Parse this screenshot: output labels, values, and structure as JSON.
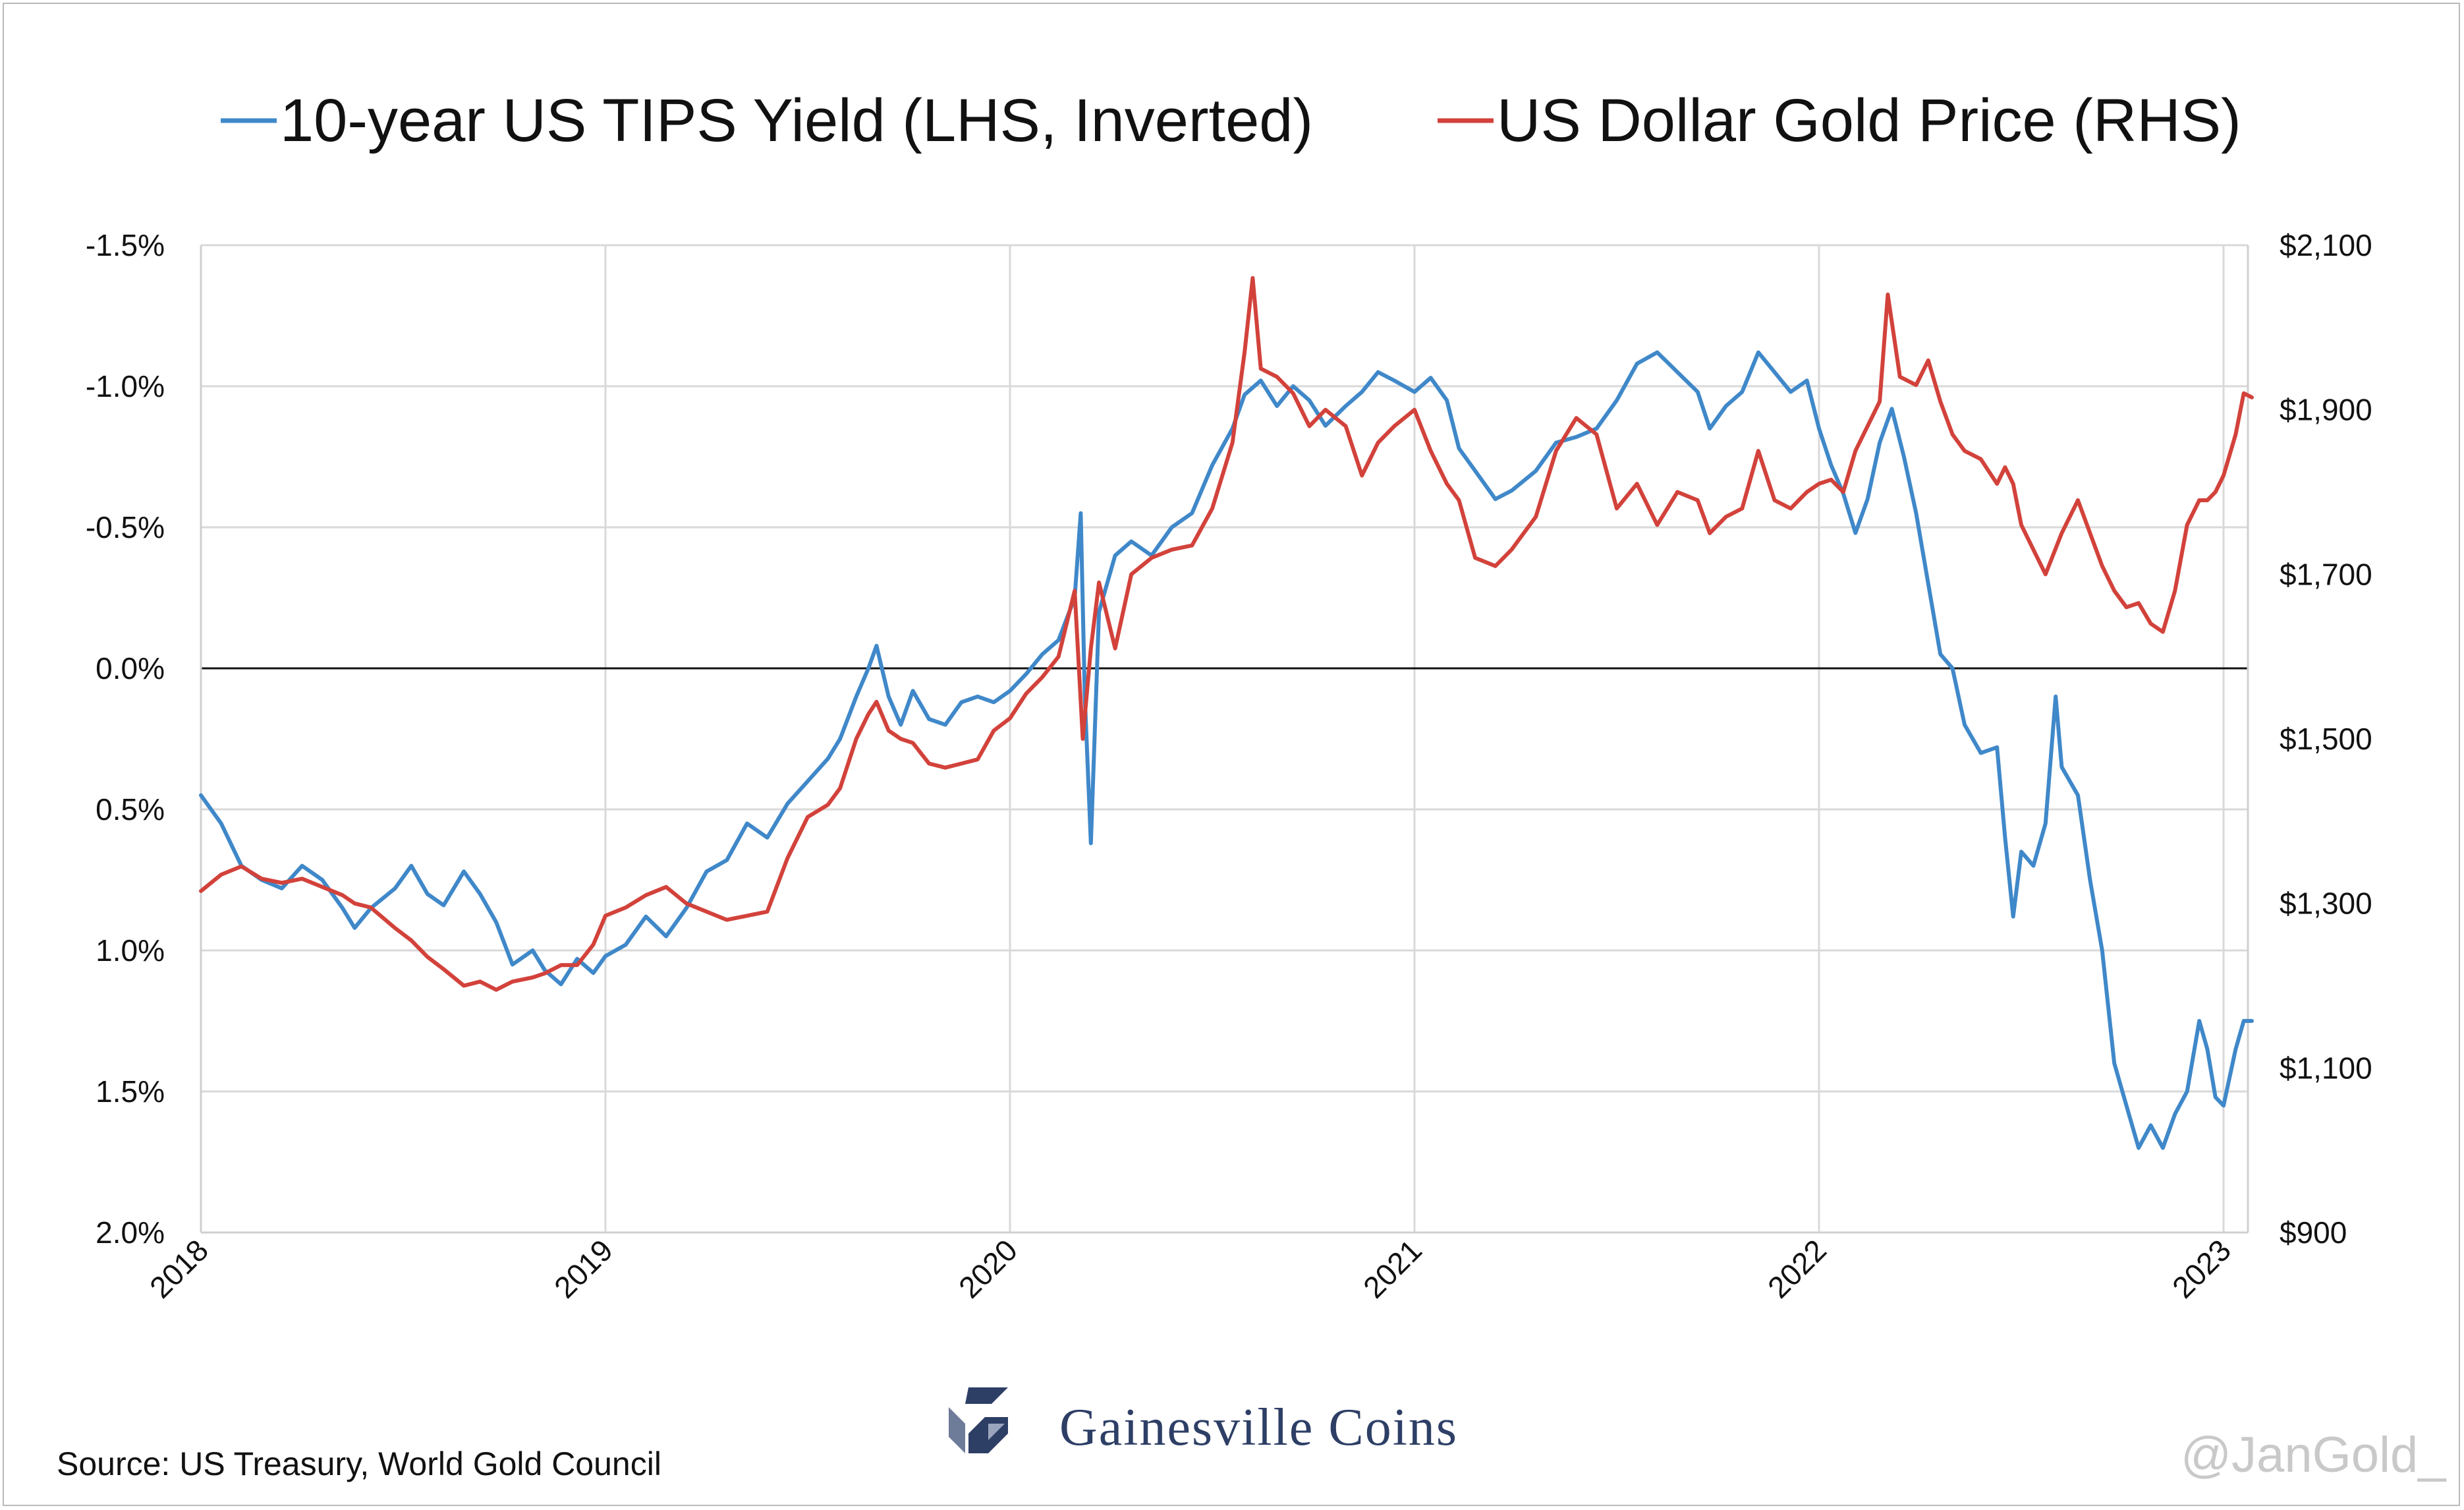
{
  "chart_data": {
    "type": "line",
    "legend": {
      "placement": "top",
      "items": [
        {
          "label": "10-year US TIPS Yield (LHS, Inverted)",
          "color": "#3f88c9"
        },
        {
          "label": "US Dollar Gold Price (RHS)",
          "color": "#d2423b"
        }
      ]
    },
    "x_axis": {
      "ticks": [
        "2018",
        "2019",
        "2020",
        "2021",
        "2022",
        "2023"
      ],
      "range": [
        2018.0,
        2023.07
      ]
    },
    "left_axis": {
      "inverted": true,
      "range": [
        -1.5,
        2.0
      ],
      "ticks": [
        {
          "v": -1.5,
          "label": "-1.5%"
        },
        {
          "v": -1.0,
          "label": "-1.0%"
        },
        {
          "v": -0.5,
          "label": "-0.5%"
        },
        {
          "v": 0.0,
          "label": "0.0%"
        },
        {
          "v": 0.5,
          "label": "0.5%"
        },
        {
          "v": 1.0,
          "label": "1.0%"
        },
        {
          "v": 1.5,
          "label": "1.5%"
        },
        {
          "v": 2.0,
          "label": "2.0%"
        }
      ]
    },
    "right_axis": {
      "range": [
        900,
        2100
      ],
      "ticks": [
        {
          "v": 2100,
          "label": "$2,100"
        },
        {
          "v": 1900,
          "label": "$1,900"
        },
        {
          "v": 1700,
          "label": "$1,700"
        },
        {
          "v": 1500,
          "label": "$1,500"
        },
        {
          "v": 1300,
          "label": "$1,300"
        },
        {
          "v": 1100,
          "label": "$1,100"
        },
        {
          "v": 900,
          "label": "$900"
        }
      ]
    },
    "grid": true,
    "zero_line": 0.0,
    "series": [
      {
        "name": "10-year US TIPS Yield (LHS, Inverted)",
        "axis": "left",
        "color": "#3f88c9",
        "points": [
          [
            2018.0,
            0.45
          ],
          [
            2018.05,
            0.55
          ],
          [
            2018.1,
            0.7
          ],
          [
            2018.15,
            0.75
          ],
          [
            2018.2,
            0.78
          ],
          [
            2018.25,
            0.7
          ],
          [
            2018.3,
            0.75
          ],
          [
            2018.35,
            0.85
          ],
          [
            2018.38,
            0.92
          ],
          [
            2018.42,
            0.85
          ],
          [
            2018.48,
            0.78
          ],
          [
            2018.52,
            0.7
          ],
          [
            2018.56,
            0.8
          ],
          [
            2018.6,
            0.84
          ],
          [
            2018.65,
            0.72
          ],
          [
            2018.69,
            0.8
          ],
          [
            2018.73,
            0.9
          ],
          [
            2018.77,
            1.05
          ],
          [
            2018.82,
            1.0
          ],
          [
            2018.85,
            1.07
          ],
          [
            2018.89,
            1.12
          ],
          [
            2018.93,
            1.03
          ],
          [
            2018.97,
            1.08
          ],
          [
            2019.0,
            1.02
          ],
          [
            2019.05,
            0.98
          ],
          [
            2019.1,
            0.88
          ],
          [
            2019.15,
            0.95
          ],
          [
            2019.2,
            0.85
          ],
          [
            2019.25,
            0.72
          ],
          [
            2019.3,
            0.68
          ],
          [
            2019.35,
            0.55
          ],
          [
            2019.4,
            0.6
          ],
          [
            2019.45,
            0.48
          ],
          [
            2019.5,
            0.4
          ],
          [
            2019.55,
            0.32
          ],
          [
            2019.58,
            0.25
          ],
          [
            2019.62,
            0.1
          ],
          [
            2019.65,
            0.0
          ],
          [
            2019.67,
            -0.08
          ],
          [
            2019.7,
            0.1
          ],
          [
            2019.73,
            0.2
          ],
          [
            2019.76,
            0.08
          ],
          [
            2019.8,
            0.18
          ],
          [
            2019.84,
            0.2
          ],
          [
            2019.88,
            0.12
          ],
          [
            2019.92,
            0.1
          ],
          [
            2019.96,
            0.12
          ],
          [
            2020.0,
            0.08
          ],
          [
            2020.04,
            0.02
          ],
          [
            2020.08,
            -0.05
          ],
          [
            2020.12,
            -0.1
          ],
          [
            2020.16,
            -0.25
          ],
          [
            2020.175,
            -0.55
          ],
          [
            2020.185,
            0.1
          ],
          [
            2020.2,
            0.62
          ],
          [
            2020.22,
            -0.2
          ],
          [
            2020.26,
            -0.4
          ],
          [
            2020.3,
            -0.45
          ],
          [
            2020.35,
            -0.4
          ],
          [
            2020.4,
            -0.5
          ],
          [
            2020.45,
            -0.55
          ],
          [
            2020.5,
            -0.72
          ],
          [
            2020.55,
            -0.85
          ],
          [
            2020.58,
            -0.97
          ],
          [
            2020.62,
            -1.02
          ],
          [
            2020.66,
            -0.93
          ],
          [
            2020.7,
            -1.0
          ],
          [
            2020.74,
            -0.95
          ],
          [
            2020.78,
            -0.86
          ],
          [
            2020.83,
            -0.93
          ],
          [
            2020.87,
            -0.98
          ],
          [
            2020.91,
            -1.05
          ],
          [
            2020.95,
            -1.02
          ],
          [
            2021.0,
            -0.98
          ],
          [
            2021.04,
            -1.03
          ],
          [
            2021.08,
            -0.95
          ],
          [
            2021.11,
            -0.78
          ],
          [
            2021.15,
            -0.7
          ],
          [
            2021.2,
            -0.6
          ],
          [
            2021.24,
            -0.63
          ],
          [
            2021.3,
            -0.7
          ],
          [
            2021.35,
            -0.8
          ],
          [
            2021.4,
            -0.82
          ],
          [
            2021.45,
            -0.85
          ],
          [
            2021.5,
            -0.95
          ],
          [
            2021.55,
            -1.08
          ],
          [
            2021.6,
            -1.12
          ],
          [
            2021.65,
            -1.05
          ],
          [
            2021.7,
            -0.98
          ],
          [
            2021.73,
            -0.85
          ],
          [
            2021.77,
            -0.93
          ],
          [
            2021.81,
            -0.98
          ],
          [
            2021.85,
            -1.12
          ],
          [
            2021.89,
            -1.05
          ],
          [
            2021.93,
            -0.98
          ],
          [
            2021.97,
            -1.02
          ],
          [
            2022.0,
            -0.85
          ],
          [
            2022.03,
            -0.72
          ],
          [
            2022.06,
            -0.62
          ],
          [
            2022.09,
            -0.48
          ],
          [
            2022.12,
            -0.6
          ],
          [
            2022.15,
            -0.8
          ],
          [
            2022.18,
            -0.92
          ],
          [
            2022.21,
            -0.75
          ],
          [
            2022.24,
            -0.55
          ],
          [
            2022.27,
            -0.3
          ],
          [
            2022.3,
            -0.05
          ],
          [
            2022.33,
            0.0
          ],
          [
            2022.36,
            0.2
          ],
          [
            2022.4,
            0.3
          ],
          [
            2022.44,
            0.28
          ],
          [
            2022.46,
            0.6
          ],
          [
            2022.48,
            0.88
          ],
          [
            2022.5,
            0.65
          ],
          [
            2022.53,
            0.7
          ],
          [
            2022.56,
            0.55
          ],
          [
            2022.585,
            0.1
          ],
          [
            2022.6,
            0.35
          ],
          [
            2022.64,
            0.45
          ],
          [
            2022.67,
            0.75
          ],
          [
            2022.7,
            1.0
          ],
          [
            2022.73,
            1.4
          ],
          [
            2022.76,
            1.55
          ],
          [
            2022.79,
            1.7
          ],
          [
            2022.82,
            1.62
          ],
          [
            2022.85,
            1.7
          ],
          [
            2022.88,
            1.58
          ],
          [
            2022.91,
            1.5
          ],
          [
            2022.94,
            1.25
          ],
          [
            2022.96,
            1.35
          ],
          [
            2022.98,
            1.52
          ],
          [
            2023.0,
            1.55
          ],
          [
            2023.03,
            1.35
          ],
          [
            2023.05,
            1.25
          ],
          [
            2023.07,
            1.25
          ]
        ]
      },
      {
        "name": "US Dollar Gold Price (RHS)",
        "axis": "right",
        "color": "#d2423b",
        "points": [
          [
            2018.0,
            1315
          ],
          [
            2018.05,
            1335
          ],
          [
            2018.1,
            1345
          ],
          [
            2018.15,
            1330
          ],
          [
            2018.2,
            1325
          ],
          [
            2018.25,
            1330
          ],
          [
            2018.3,
            1320
          ],
          [
            2018.35,
            1310
          ],
          [
            2018.38,
            1300
          ],
          [
            2018.42,
            1295
          ],
          [
            2018.48,
            1270
          ],
          [
            2018.52,
            1255
          ],
          [
            2018.56,
            1235
          ],
          [
            2018.6,
            1220
          ],
          [
            2018.65,
            1200
          ],
          [
            2018.69,
            1205
          ],
          [
            2018.73,
            1195
          ],
          [
            2018.77,
            1205
          ],
          [
            2018.82,
            1210
          ],
          [
            2018.85,
            1215
          ],
          [
            2018.89,
            1225
          ],
          [
            2018.93,
            1225
          ],
          [
            2018.97,
            1250
          ],
          [
            2019.0,
            1285
          ],
          [
            2019.05,
            1295
          ],
          [
            2019.1,
            1310
          ],
          [
            2019.15,
            1320
          ],
          [
            2019.2,
            1300
          ],
          [
            2019.25,
            1290
          ],
          [
            2019.3,
            1280
          ],
          [
            2019.35,
            1285
          ],
          [
            2019.4,
            1290
          ],
          [
            2019.45,
            1355
          ],
          [
            2019.5,
            1405
          ],
          [
            2019.55,
            1420
          ],
          [
            2019.58,
            1440
          ],
          [
            2019.62,
            1500
          ],
          [
            2019.65,
            1530
          ],
          [
            2019.67,
            1545
          ],
          [
            2019.7,
            1510
          ],
          [
            2019.73,
            1500
          ],
          [
            2019.76,
            1495
          ],
          [
            2019.8,
            1470
          ],
          [
            2019.84,
            1465
          ],
          [
            2019.88,
            1470
          ],
          [
            2019.92,
            1475
          ],
          [
            2019.96,
            1510
          ],
          [
            2020.0,
            1525
          ],
          [
            2020.04,
            1555
          ],
          [
            2020.08,
            1575
          ],
          [
            2020.12,
            1600
          ],
          [
            2020.16,
            1680
          ],
          [
            2020.18,
            1500
          ],
          [
            2020.2,
            1610
          ],
          [
            2020.22,
            1690
          ],
          [
            2020.26,
            1610
          ],
          [
            2020.3,
            1700
          ],
          [
            2020.35,
            1720
          ],
          [
            2020.4,
            1730
          ],
          [
            2020.45,
            1735
          ],
          [
            2020.5,
            1780
          ],
          [
            2020.55,
            1860
          ],
          [
            2020.58,
            1970
          ],
          [
            2020.6,
            2060
          ],
          [
            2020.62,
            1950
          ],
          [
            2020.66,
            1940
          ],
          [
            2020.7,
            1920
          ],
          [
            2020.74,
            1880
          ],
          [
            2020.78,
            1900
          ],
          [
            2020.83,
            1880
          ],
          [
            2020.87,
            1820
          ],
          [
            2020.91,
            1860
          ],
          [
            2020.95,
            1880
          ],
          [
            2021.0,
            1900
          ],
          [
            2021.04,
            1850
          ],
          [
            2021.08,
            1810
          ],
          [
            2021.11,
            1790
          ],
          [
            2021.15,
            1720
          ],
          [
            2021.2,
            1710
          ],
          [
            2021.24,
            1730
          ],
          [
            2021.3,
            1770
          ],
          [
            2021.35,
            1850
          ],
          [
            2021.4,
            1890
          ],
          [
            2021.45,
            1870
          ],
          [
            2021.5,
            1780
          ],
          [
            2021.55,
            1810
          ],
          [
            2021.6,
            1760
          ],
          [
            2021.65,
            1800
          ],
          [
            2021.7,
            1790
          ],
          [
            2021.73,
            1750
          ],
          [
            2021.77,
            1770
          ],
          [
            2021.81,
            1780
          ],
          [
            2021.85,
            1850
          ],
          [
            2021.89,
            1790
          ],
          [
            2021.93,
            1780
          ],
          [
            2021.97,
            1800
          ],
          [
            2022.0,
            1810
          ],
          [
            2022.03,
            1815
          ],
          [
            2022.06,
            1800
          ],
          [
            2022.09,
            1850
          ],
          [
            2022.12,
            1880
          ],
          [
            2022.15,
            1910
          ],
          [
            2022.17,
            2040
          ],
          [
            2022.2,
            1940
          ],
          [
            2022.24,
            1930
          ],
          [
            2022.27,
            1960
          ],
          [
            2022.3,
            1910
          ],
          [
            2022.33,
            1870
          ],
          [
            2022.36,
            1850
          ],
          [
            2022.4,
            1840
          ],
          [
            2022.44,
            1810
          ],
          [
            2022.46,
            1830
          ],
          [
            2022.48,
            1810
          ],
          [
            2022.5,
            1760
          ],
          [
            2022.53,
            1730
          ],
          [
            2022.56,
            1700
          ],
          [
            2022.6,
            1750
          ],
          [
            2022.64,
            1790
          ],
          [
            2022.67,
            1750
          ],
          [
            2022.7,
            1710
          ],
          [
            2022.73,
            1680
          ],
          [
            2022.76,
            1660
          ],
          [
            2022.79,
            1665
          ],
          [
            2022.82,
            1640
          ],
          [
            2022.85,
            1630
          ],
          [
            2022.88,
            1680
          ],
          [
            2022.91,
            1760
          ],
          [
            2022.94,
            1790
          ],
          [
            2022.96,
            1790
          ],
          [
            2022.98,
            1800
          ],
          [
            2023.0,
            1820
          ],
          [
            2023.03,
            1870
          ],
          [
            2023.05,
            1920
          ],
          [
            2023.07,
            1915
          ]
        ]
      }
    ]
  },
  "footer": {
    "source": "Source: US Treasury, World Gold Council",
    "brand": "Gainesville Coins",
    "handle": "@JanGold_"
  }
}
